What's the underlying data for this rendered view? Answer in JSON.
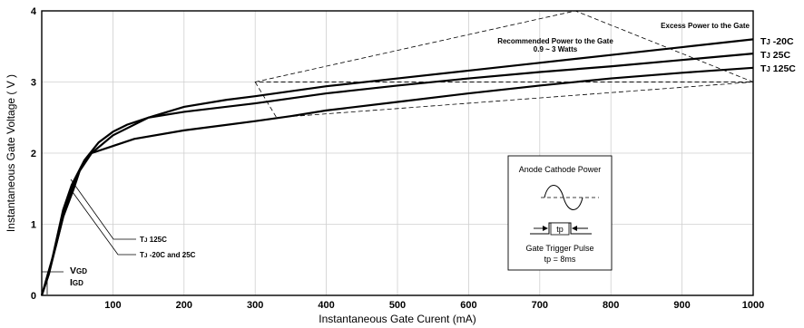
{
  "chart_data": {
    "type": "line",
    "title": "",
    "xlabel": "Instantaneous Gate Curent (mA)",
    "ylabel": "Instantaneous Gate Voltage ( V )",
    "xlim": [
      0,
      1000
    ],
    "ylim": [
      0,
      4
    ],
    "x_ticks": [
      "100",
      "200",
      "300",
      "400",
      "500",
      "600",
      "700",
      "800",
      "900",
      "1000"
    ],
    "y_ticks": [
      "0",
      "1",
      "2",
      "3",
      "4"
    ],
    "grid": true,
    "series": [
      {
        "name": "TJ -20C",
        "points": [
          [
            0,
            0
          ],
          [
            10,
            0.3
          ],
          [
            30,
            1.2
          ],
          [
            42,
            1.55
          ],
          [
            60,
            1.9
          ],
          [
            80,
            2.15
          ],
          [
            100,
            2.3
          ],
          [
            120,
            2.4
          ],
          [
            150,
            2.5
          ],
          [
            200,
            2.65
          ],
          [
            260,
            2.75
          ],
          [
            300,
            2.8
          ],
          [
            350,
            2.87
          ],
          [
            400,
            2.94
          ],
          [
            500,
            3.05
          ],
          [
            600,
            3.16
          ],
          [
            700,
            3.27
          ],
          [
            800,
            3.38
          ],
          [
            900,
            3.49
          ],
          [
            1000,
            3.6
          ]
        ]
      },
      {
        "name": "TJ 25C",
        "points": [
          [
            0,
            0
          ],
          [
            10,
            0.3
          ],
          [
            30,
            1.1
          ],
          [
            45,
            1.5
          ],
          [
            55,
            1.8
          ],
          [
            70,
            2.0
          ],
          [
            100,
            2.25
          ],
          [
            150,
            2.5
          ],
          [
            200,
            2.58
          ],
          [
            300,
            2.7
          ],
          [
            350,
            2.77
          ],
          [
            400,
            2.84
          ],
          [
            500,
            2.95
          ],
          [
            600,
            3.05
          ],
          [
            700,
            3.14
          ],
          [
            800,
            3.22
          ],
          [
            900,
            3.31
          ],
          [
            1000,
            3.4
          ]
        ]
      },
      {
        "name": "TJ 125C",
        "points": [
          [
            0,
            0
          ],
          [
            20,
            0.7
          ],
          [
            35,
            1.3
          ],
          [
            50,
            1.7
          ],
          [
            70,
            2.0
          ],
          [
            100,
            2.1
          ],
          [
            130,
            2.2
          ],
          [
            200,
            2.32
          ],
          [
            300,
            2.45
          ],
          [
            350,
            2.52
          ],
          [
            400,
            2.6
          ],
          [
            500,
            2.72
          ],
          [
            600,
            2.84
          ],
          [
            700,
            2.95
          ],
          [
            800,
            3.05
          ],
          [
            900,
            3.13
          ],
          [
            1000,
            3.2
          ]
        ]
      }
    ],
    "regions": {
      "recommended_power": [
        [
          300,
          3.0
        ],
        [
          330,
          2.5
        ],
        [
          1000,
          3.0
        ]
      ],
      "excess_power": [
        [
          300,
          3.0
        ],
        [
          750,
          4.0
        ],
        [
          1000,
          3.0
        ]
      ]
    },
    "curve_labels": {
      "tj_minus20": {
        "pre": "T",
        "sub": "J",
        "post": " -20C"
      },
      "tj_25": {
        "pre": "T",
        "sub": "J",
        "post": " 25C"
      },
      "tj_125": {
        "pre": "T",
        "sub": "J",
        "post": " 125C"
      }
    },
    "annotations": {
      "excess": "Excess Power to the Gate",
      "recommended_line1": "Recommended Power to the Gate",
      "recommended_line2": "0.9 ~ 3 Watts",
      "low_tj125": "TJ 125C",
      "low_tj_pre": "T",
      "low_tj_sub": "J",
      "low_tj125_post": " 125C",
      "low_tj_others_post": " -20C and 25C",
      "vgd_pre": "V",
      "vgd_sub": "GD",
      "igd_pre": "I",
      "igd_sub": "GD"
    },
    "inset": {
      "title": "Anode Cathode Power",
      "pulse_label": "tp",
      "caption": "Gate Trigger Pulse",
      "formula": "tp = 8ms"
    }
  }
}
